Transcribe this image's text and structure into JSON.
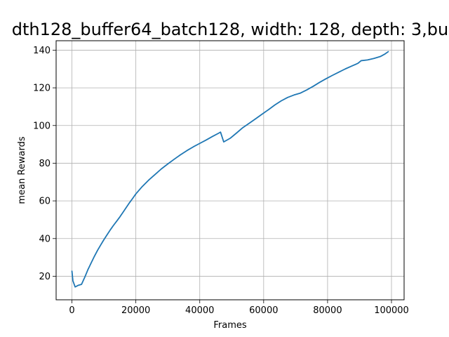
{
  "chart_data": {
    "type": "line",
    "title": "dth128_buffer64_batch128, width: 128, depth: 3,bu",
    "xlabel": "Frames",
    "ylabel": "mean Rewards",
    "xlim": [
      -4950,
      103950
    ],
    "ylim": [
      7.5,
      145.0
    ],
    "xticks": [
      0,
      20000,
      40000,
      60000,
      80000,
      100000
    ],
    "yticks": [
      20,
      40,
      60,
      80,
      100,
      120,
      140
    ],
    "grid": true,
    "series": [
      {
        "color": "#1f77b4",
        "points": [
          [
            0,
            22.7
          ],
          [
            300,
            17.6
          ],
          [
            1000,
            14.3
          ],
          [
            2000,
            15.2
          ],
          [
            3000,
            15.7
          ],
          [
            4000,
            19.4
          ],
          [
            5000,
            23.5
          ],
          [
            6000,
            27.0
          ],
          [
            7000,
            30.5
          ],
          [
            8000,
            33.7
          ],
          [
            9000,
            36.6
          ],
          [
            10000,
            39.4
          ],
          [
            11000,
            42.0
          ],
          [
            12000,
            44.6
          ],
          [
            13000,
            47.0
          ],
          [
            14000,
            49.2
          ],
          [
            15000,
            51.5
          ],
          [
            16000,
            54.0
          ],
          [
            17000,
            56.5
          ],
          [
            18000,
            59.0
          ],
          [
            19000,
            61.3
          ],
          [
            20000,
            63.7
          ],
          [
            22000,
            67.6
          ],
          [
            24000,
            71.0
          ],
          [
            26000,
            74.0
          ],
          [
            28000,
            77.0
          ],
          [
            30000,
            79.6
          ],
          [
            32000,
            82.1
          ],
          [
            34000,
            84.5
          ],
          [
            36000,
            86.7
          ],
          [
            38000,
            88.7
          ],
          [
            40000,
            90.5
          ],
          [
            42000,
            92.3
          ],
          [
            44000,
            94.2
          ],
          [
            46000,
            96.0
          ],
          [
            46500,
            96.5
          ],
          [
            47500,
            91.3
          ],
          [
            49500,
            93.2
          ],
          [
            51500,
            96.0
          ],
          [
            53500,
            98.9
          ],
          [
            55500,
            101.2
          ],
          [
            57500,
            103.6
          ],
          [
            59500,
            106.0
          ],
          [
            61500,
            108.4
          ],
          [
            63500,
            110.9
          ],
          [
            65500,
            113.1
          ],
          [
            67500,
            114.9
          ],
          [
            69500,
            116.2
          ],
          [
            71500,
            117.2
          ],
          [
            73500,
            118.9
          ],
          [
            75500,
            120.8
          ],
          [
            77500,
            122.9
          ],
          [
            79500,
            124.8
          ],
          [
            81500,
            126.6
          ],
          [
            83500,
            128.3
          ],
          [
            85500,
            130.0
          ],
          [
            87500,
            131.5
          ],
          [
            89500,
            133.0
          ],
          [
            90500,
            134.4
          ],
          [
            92500,
            134.8
          ],
          [
            94500,
            135.6
          ],
          [
            96500,
            136.6
          ],
          [
            98000,
            138.0
          ],
          [
            99000,
            139.2
          ]
        ]
      }
    ]
  }
}
